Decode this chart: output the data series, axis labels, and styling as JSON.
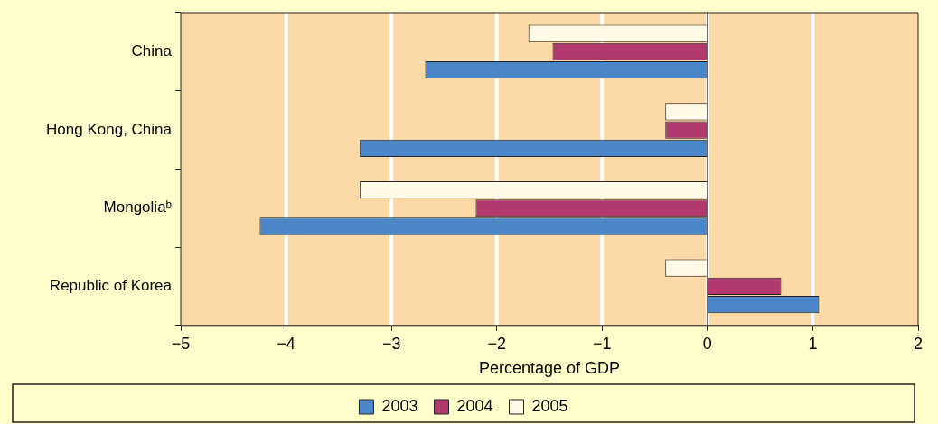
{
  "chart_data": {
    "type": "bar",
    "orientation": "horizontal",
    "xlabel": "Percentage of GDP",
    "categories": [
      "China",
      "Hong Kong, China",
      "Mongoliaᵇ",
      "Republic of Korea"
    ],
    "series": [
      {
        "name": "2003",
        "color": "#4a86c8",
        "values": [
          -2.68,
          -3.3,
          -4.25,
          1.06
        ]
      },
      {
        "name": "2004",
        "color": "#b03a6e",
        "values": [
          -1.47,
          -0.4,
          -2.2,
          0.7
        ]
      },
      {
        "name": "2005",
        "color": "#fffbe6",
        "values": [
          -1.7,
          -0.4,
          -3.3,
          -0.4
        ]
      }
    ],
    "xlim": [
      -5,
      2
    ],
    "xticks": [
      -5,
      -4,
      -3,
      -2,
      -1,
      0,
      1,
      2
    ],
    "grid": "x",
    "legend": "bottom"
  }
}
